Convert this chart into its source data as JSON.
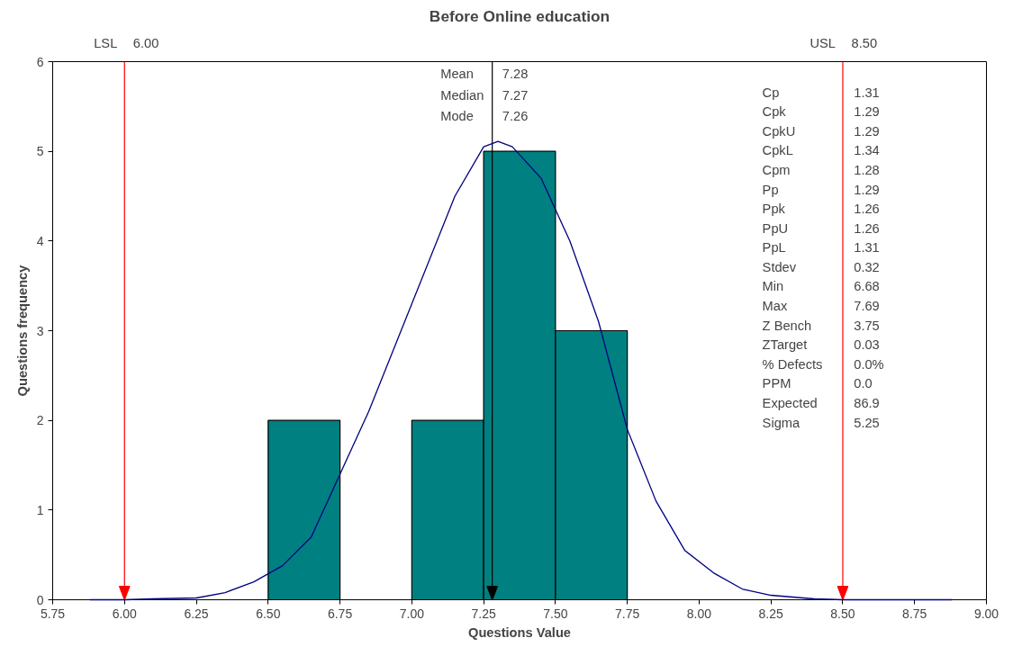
{
  "chart_data": {
    "type": "histogram",
    "title": "Before Online education",
    "xlabel": "Questions Value",
    "ylabel": "Questions frequency",
    "bins": [
      6.5,
      6.75,
      7.0,
      7.25,
      7.5,
      7.75
    ],
    "values": [
      2,
      0,
      2,
      5,
      3
    ],
    "color": "#008080",
    "series": [
      {
        "type": "line",
        "color": "#000080",
        "x": [
          5.88,
          6.0,
          6.1,
          6.25,
          6.35,
          6.45,
          6.55,
          6.65,
          6.75,
          6.85,
          6.95,
          7.05,
          7.15,
          7.25,
          7.3,
          7.35,
          7.45,
          7.55,
          7.65,
          7.75,
          7.85,
          7.95,
          8.05,
          8.15,
          8.25,
          8.4,
          8.5,
          8.88
        ],
        "values": [
          0,
          0,
          0.01,
          0.02,
          0.08,
          0.2,
          0.38,
          0.7,
          1.4,
          2.1,
          2.9,
          3.7,
          4.5,
          5.05,
          5.11,
          5.05,
          4.7,
          4.0,
          3.1,
          1.9,
          1.1,
          0.55,
          0.3,
          0.12,
          0.05,
          0.01,
          0,
          0
        ]
      }
    ],
    "xlim": [
      5.75,
      9.0
    ],
    "xticks": [
      {
        "value": 5.75,
        "label": "5.75"
      },
      {
        "value": 6.0,
        "label": "6.00"
      },
      {
        "value": 6.25,
        "label": "6.25"
      },
      {
        "value": 6.5,
        "label": "6.50"
      },
      {
        "value": 6.75,
        "label": "6.75"
      },
      {
        "value": 7.0,
        "label": "7.00"
      },
      {
        "value": 7.25,
        "label": "7.25"
      },
      {
        "value": 7.5,
        "label": "7.50"
      },
      {
        "value": 7.75,
        "label": "7.75"
      },
      {
        "value": 8.0,
        "label": "8.00"
      },
      {
        "value": 8.25,
        "label": "8.25"
      },
      {
        "value": 8.5,
        "label": "8.50"
      },
      {
        "value": 8.75,
        "label": "8.75"
      },
      {
        "value": 9.0,
        "label": "9.00"
      }
    ],
    "ylim": [
      0,
      6
    ],
    "yticks": [
      0,
      1,
      2,
      3,
      4,
      5,
      6
    ],
    "grid": false,
    "ref_lines": [
      {
        "axis": "x",
        "value": 6.0,
        "label": "LSL 6.00",
        "color": "#ff0000"
      },
      {
        "axis": "x",
        "value": 8.5,
        "label": "USL 8.50",
        "color": "#ff0000"
      },
      {
        "axis": "x",
        "value": 7.28,
        "label": "Mean 7.28",
        "color": "#000000"
      }
    ],
    "annotations": [
      "Median 7.27",
      "Mode 7.26",
      "Cp 1.31",
      "Cpk 1.29",
      "CpkU 1.29",
      "CpkL 1.34",
      "Cpm 1.28",
      "Pp 1.29",
      "Ppk 1.26",
      "PpU 1.26",
      "PpL 1.31",
      "Stdev 0.32",
      "Min 6.68",
      "Max 7.69",
      "Z Bench 3.75",
      "ZTarget 0.03",
      "% Defects 0.0%",
      "PPM 0.0",
      "Expected 86.9",
      "Sigma 5.25"
    ]
  }
}
